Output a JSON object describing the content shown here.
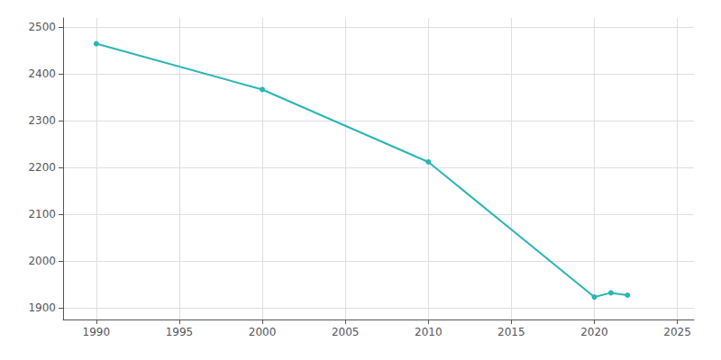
{
  "chart_data": {
    "type": "line",
    "x": [
      1990,
      2000,
      2010,
      2020,
      2021,
      2022
    ],
    "values": [
      2465,
      2367,
      2212,
      1923,
      1932,
      1927
    ],
    "color": "#2ab5b5",
    "marker": "circle",
    "xlim": [
      1988,
      2026
    ],
    "ylim": [
      1875,
      2520
    ],
    "xticks": [
      1990,
      1995,
      2000,
      2005,
      2010,
      2015,
      2020,
      2025
    ],
    "yticks": [
      1900,
      2000,
      2100,
      2200,
      2300,
      2400,
      2500
    ],
    "grid": true
  }
}
